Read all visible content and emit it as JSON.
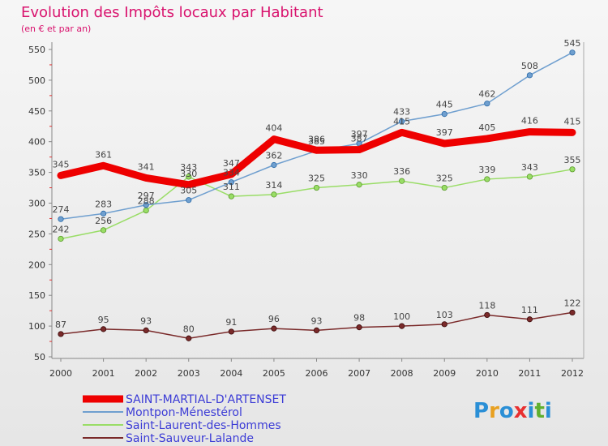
{
  "chart_data": {
    "type": "line",
    "title": "Evolution des Impôts locaux par Habitant",
    "subtitle": "(en € et par an)",
    "x": [
      "2000",
      "2001",
      "2002",
      "2003",
      "2004",
      "2005",
      "2006",
      "2007",
      "2008",
      "2009",
      "2010",
      "2011",
      "2012"
    ],
    "ylim": [
      50,
      550
    ],
    "yticks": [
      50,
      100,
      150,
      200,
      250,
      300,
      350,
      400,
      450,
      500,
      550
    ],
    "grid": false,
    "legend_position": "bottom-left",
    "series": [
      {
        "name": "SAINT-MARTIAL-D'ARTENSET",
        "color": "#ee0000",
        "values": [
          345,
          361,
          341,
          330,
          347,
          404,
          386,
          387,
          415,
          397,
          405,
          416,
          415
        ]
      },
      {
        "name": "Montpon-Ménestérol",
        "color": "#6f9fcf",
        "values": [
          274,
          283,
          297,
          305,
          334,
          362,
          385,
          397,
          433,
          445,
          462,
          508,
          545
        ]
      },
      {
        "name": "Saint-Laurent-des-Hommes",
        "color": "#99dd66",
        "values": [
          242,
          256,
          288,
          343,
          311,
          314,
          325,
          330,
          336,
          325,
          339,
          343,
          355
        ]
      },
      {
        "name": "Saint-Sauveur-Lalande",
        "color": "#7a2a2a",
        "values": [
          87,
          95,
          93,
          80,
          91,
          96,
          93,
          98,
          100,
          103,
          118,
          111,
          122
        ]
      }
    ]
  },
  "branding": {
    "logo_text": "Proxiti",
    "logo_colors": [
      "#2a8fd6",
      "#e8a020",
      "#2a8fd6",
      "#e83030",
      "#2a8fd6",
      "#60b030",
      "#2a8fd6"
    ]
  }
}
